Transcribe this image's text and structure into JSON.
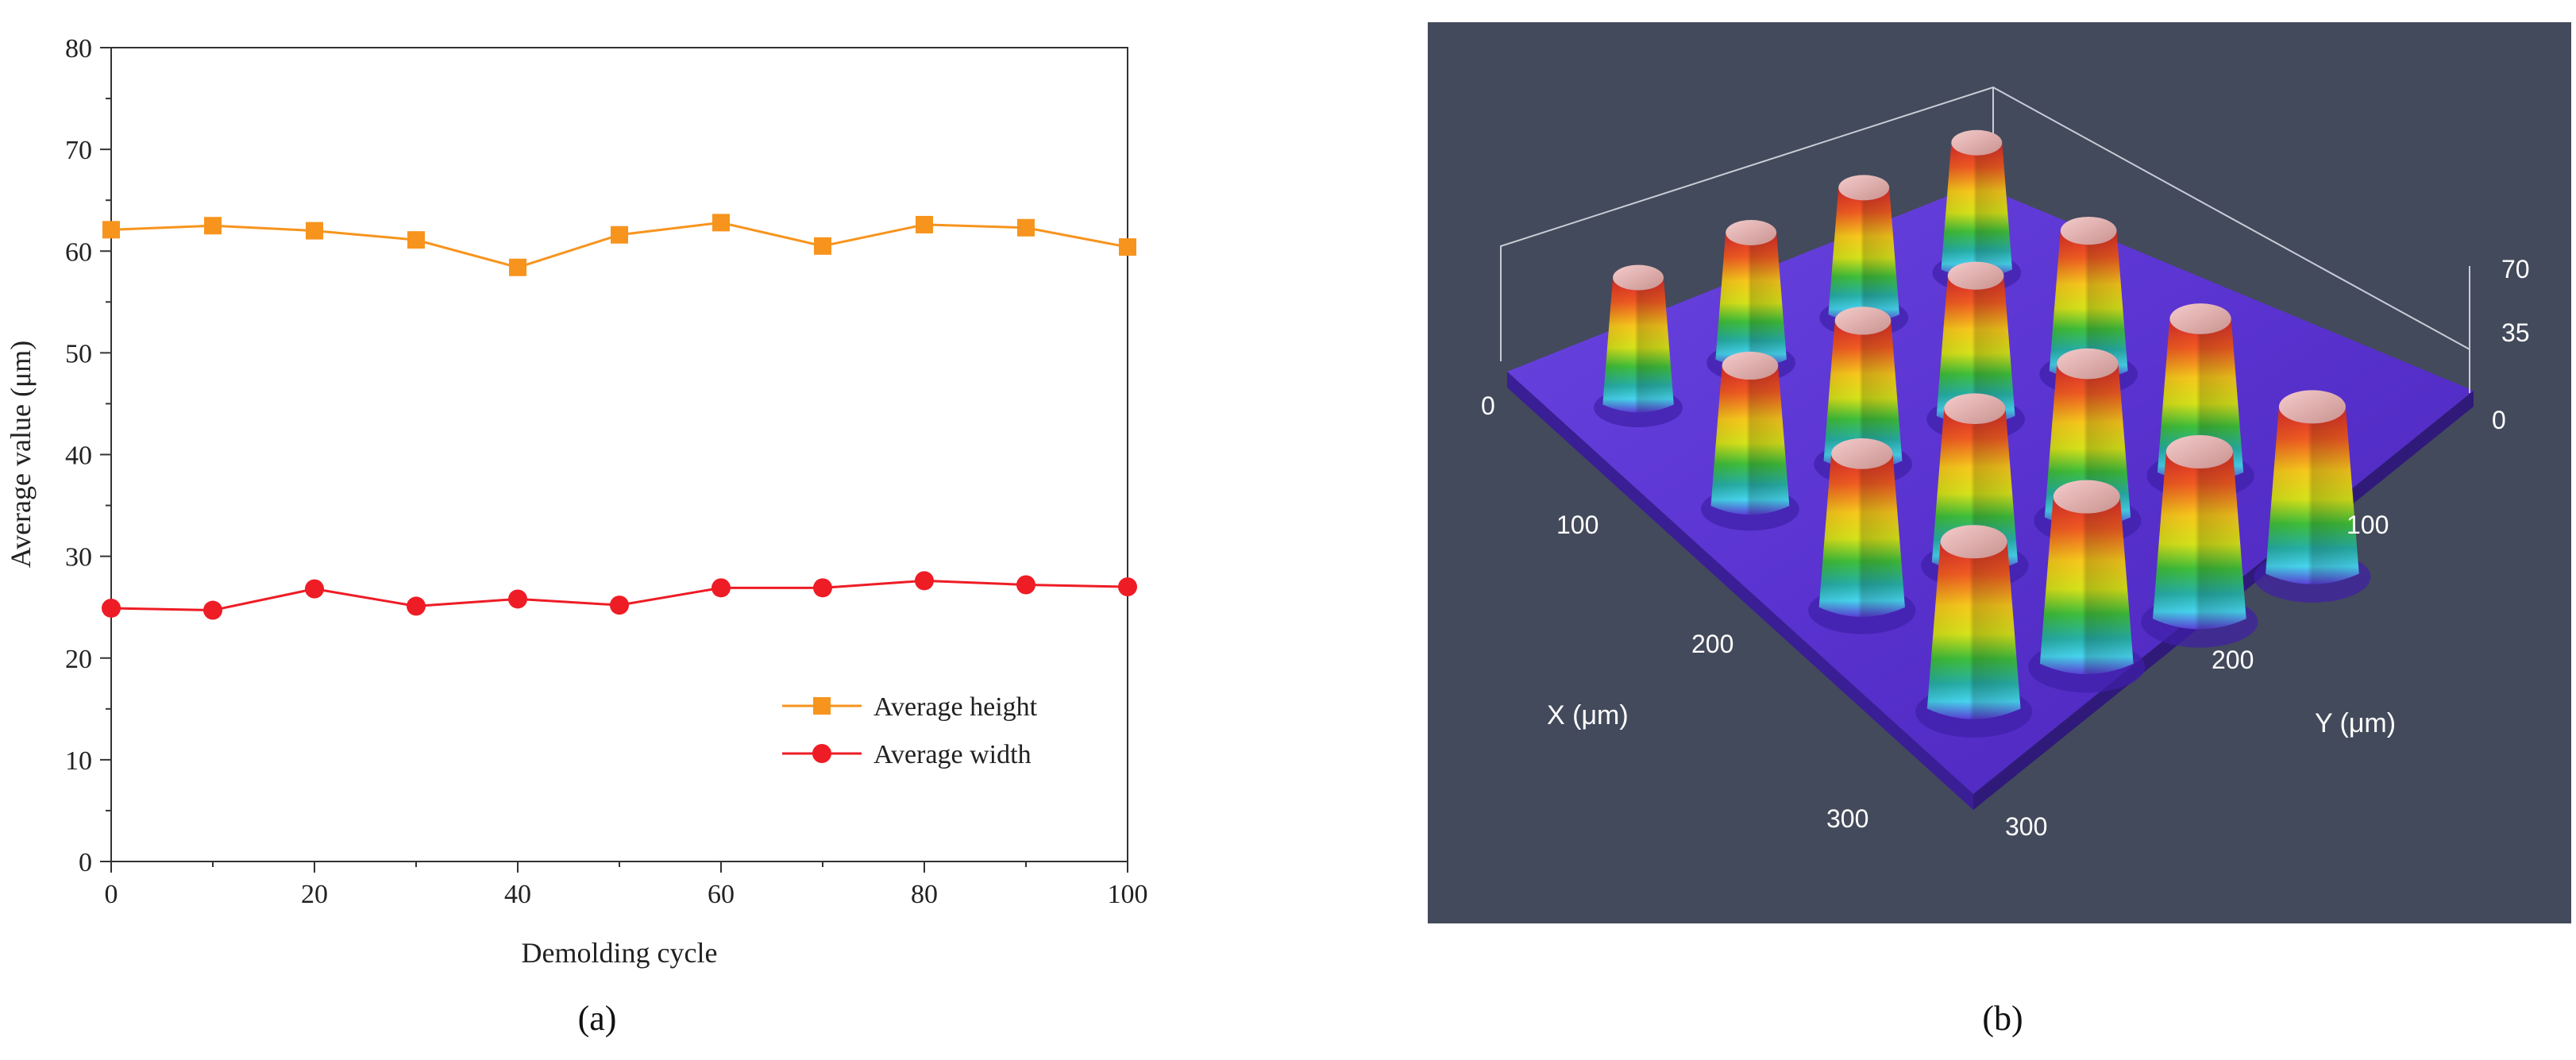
{
  "panel_labels": {
    "a": "(a)",
    "b": "(b)"
  },
  "chart_data": [
    {
      "type": "line",
      "title": "",
      "xlabel": "Demolding cycle",
      "ylabel": "Average value (μm)",
      "xlim": [
        0,
        100
      ],
      "ylim": [
        0,
        80
      ],
      "xticks": [
        0,
        20,
        40,
        60,
        80,
        100
      ],
      "yticks": [
        0,
        10,
        20,
        30,
        40,
        50,
        60,
        70,
        80
      ],
      "x": [
        0,
        10,
        20,
        30,
        40,
        50,
        60,
        70,
        80,
        90,
        100
      ],
      "series": [
        {
          "name": "Average height",
          "marker": "square",
          "color": "#f7941d",
          "values": [
            62.1,
            62.5,
            62.0,
            61.1,
            58.4,
            61.6,
            62.8,
            60.5,
            62.6,
            62.3,
            60.4
          ]
        },
        {
          "name": "Average width",
          "marker": "circle",
          "color": "#ee1c25",
          "values": [
            24.9,
            24.7,
            26.8,
            25.1,
            25.8,
            25.2,
            26.9,
            26.9,
            27.6,
            27.2,
            27.0
          ]
        }
      ],
      "legend_position": "bottom-right",
      "grid": false
    },
    {
      "type": "surface-3d",
      "description_axes": true,
      "x_label": "X (μm)",
      "y_label": "Y (μm)",
      "x_ticks": [
        "0",
        "100",
        "200",
        "300"
      ],
      "y_ticks": [
        "0",
        "100",
        "200",
        "300"
      ],
      "z_ticks": [
        "0",
        "35",
        "70"
      ],
      "pillars_grid": "4x4",
      "background_color": "#434a5b",
      "substrate_color": "#5a2fd0"
    }
  ]
}
